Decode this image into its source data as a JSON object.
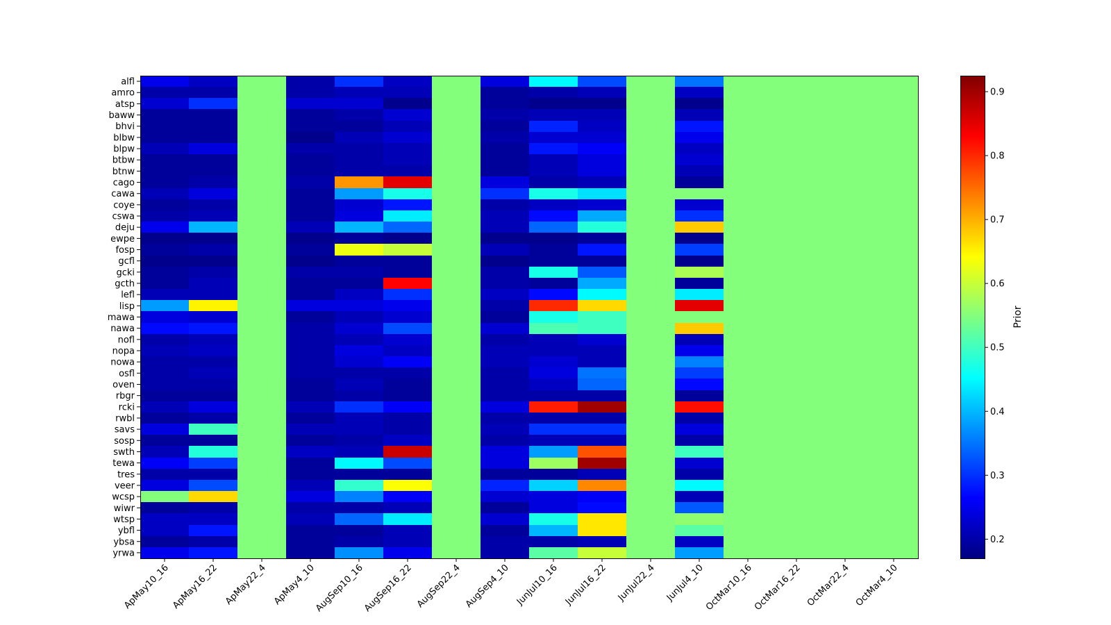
{
  "chart_data": {
    "type": "heatmap",
    "colormap": "jet",
    "colorbar": {
      "label": "Prior",
      "vmin": 0.17,
      "vmax": 0.925,
      "ticks": [
        0.2,
        0.3,
        0.4,
        0.5,
        0.6,
        0.7,
        0.8,
        0.9
      ],
      "tick_labels": [
        "0.2",
        "0.3",
        "0.4",
        "0.5",
        "0.6",
        "0.7",
        "0.8",
        "0.9"
      ]
    },
    "x_labels": [
      "ApMay10_16",
      "ApMay16_22",
      "ApMay22_4",
      "ApMay4_10",
      "AugSep10_16",
      "AugSep16_22",
      "AugSep22_4",
      "AugSep4_10",
      "JunJul10_16",
      "JunJul16_22",
      "JunJul22_4",
      "JunJul4_10",
      "OctMar10_16",
      "OctMar16_22",
      "OctMar22_4",
      "OctMar4_10"
    ],
    "y_labels": [
      "alfl",
      "amro",
      "atsp",
      "baww",
      "bhvi",
      "blbw",
      "blpw",
      "btbw",
      "btnw",
      "cago",
      "cawa",
      "coye",
      "cswa",
      "deju",
      "ewpe",
      "fosp",
      "gcfl",
      "gcki",
      "gcth",
      "lefl",
      "lisp",
      "mawa",
      "nawa",
      "nofl",
      "nopa",
      "nowa",
      "osfl",
      "oven",
      "rbgr",
      "rcki",
      "rwbl",
      "savs",
      "sosp",
      "swth",
      "tewa",
      "tres",
      "veer",
      "wcsp",
      "wiwr",
      "wtsp",
      "ybfl",
      "ybsa",
      "yrwa"
    ],
    "values": [
      [
        0.25,
        0.22,
        0.55,
        0.2,
        0.3,
        0.22,
        0.55,
        0.24,
        0.45,
        0.32,
        0.55,
        0.35,
        0.55,
        0.55,
        0.55,
        0.55
      ],
      [
        0.2,
        0.2,
        0.55,
        0.2,
        0.21,
        0.21,
        0.55,
        0.19,
        0.2,
        0.21,
        0.55,
        0.22,
        0.55,
        0.55,
        0.55,
        0.55
      ],
      [
        0.23,
        0.3,
        0.55,
        0.23,
        0.23,
        0.18,
        0.55,
        0.19,
        0.18,
        0.18,
        0.55,
        0.18,
        0.55,
        0.55,
        0.55,
        0.55
      ],
      [
        0.19,
        0.19,
        0.55,
        0.19,
        0.2,
        0.23,
        0.55,
        0.2,
        0.21,
        0.21,
        0.55,
        0.21,
        0.55,
        0.55,
        0.55,
        0.55
      ],
      [
        0.19,
        0.19,
        0.55,
        0.19,
        0.19,
        0.21,
        0.55,
        0.19,
        0.29,
        0.22,
        0.55,
        0.28,
        0.55,
        0.55,
        0.55,
        0.55
      ],
      [
        0.19,
        0.19,
        0.55,
        0.18,
        0.21,
        0.23,
        0.55,
        0.2,
        0.23,
        0.23,
        0.55,
        0.25,
        0.55,
        0.55,
        0.55,
        0.55
      ],
      [
        0.21,
        0.24,
        0.55,
        0.2,
        0.2,
        0.21,
        0.55,
        0.19,
        0.28,
        0.26,
        0.55,
        0.22,
        0.55,
        0.55,
        0.55,
        0.55
      ],
      [
        0.19,
        0.19,
        0.55,
        0.19,
        0.2,
        0.21,
        0.55,
        0.19,
        0.21,
        0.24,
        0.55,
        0.23,
        0.55,
        0.55,
        0.55,
        0.55
      ],
      [
        0.19,
        0.19,
        0.55,
        0.19,
        0.2,
        0.2,
        0.55,
        0.19,
        0.21,
        0.24,
        0.55,
        0.21,
        0.55,
        0.55,
        0.55,
        0.55
      ],
      [
        0.19,
        0.2,
        0.55,
        0.2,
        0.72,
        0.85,
        0.55,
        0.24,
        0.2,
        0.21,
        0.55,
        0.19,
        0.55,
        0.55,
        0.55,
        0.55
      ],
      [
        0.21,
        0.24,
        0.55,
        0.19,
        0.38,
        0.47,
        0.55,
        0.3,
        0.47,
        0.43,
        0.55,
        0.55,
        0.55,
        0.55,
        0.55,
        0.55
      ],
      [
        0.19,
        0.2,
        0.55,
        0.19,
        0.23,
        0.28,
        0.55,
        0.2,
        0.22,
        0.23,
        0.55,
        0.23,
        0.55,
        0.55,
        0.55,
        0.55
      ],
      [
        0.2,
        0.21,
        0.55,
        0.19,
        0.24,
        0.44,
        0.55,
        0.21,
        0.27,
        0.39,
        0.55,
        0.3,
        0.55,
        0.55,
        0.55,
        0.55
      ],
      [
        0.25,
        0.4,
        0.55,
        0.21,
        0.4,
        0.34,
        0.55,
        0.21,
        0.34,
        0.48,
        0.55,
        0.68,
        0.55,
        0.55,
        0.55,
        0.55
      ],
      [
        0.18,
        0.18,
        0.55,
        0.18,
        0.19,
        0.18,
        0.55,
        0.18,
        0.18,
        0.19,
        0.55,
        0.18,
        0.55,
        0.55,
        0.55,
        0.55
      ],
      [
        0.19,
        0.2,
        0.55,
        0.19,
        0.63,
        0.6,
        0.55,
        0.21,
        0.19,
        0.28,
        0.55,
        0.31,
        0.55,
        0.55,
        0.55,
        0.55
      ],
      [
        0.18,
        0.18,
        0.55,
        0.18,
        0.19,
        0.19,
        0.55,
        0.18,
        0.19,
        0.19,
        0.55,
        0.18,
        0.55,
        0.55,
        0.55,
        0.55
      ],
      [
        0.19,
        0.2,
        0.55,
        0.2,
        0.2,
        0.19,
        0.55,
        0.2,
        0.47,
        0.33,
        0.55,
        0.58,
        0.55,
        0.55,
        0.55,
        0.55
      ],
      [
        0.19,
        0.21,
        0.55,
        0.19,
        0.19,
        0.83,
        0.55,
        0.2,
        0.19,
        0.39,
        0.55,
        0.19,
        0.55,
        0.55,
        0.55,
        0.55
      ],
      [
        0.21,
        0.21,
        0.55,
        0.19,
        0.22,
        0.3,
        0.55,
        0.22,
        0.27,
        0.45,
        0.55,
        0.44,
        0.55,
        0.55,
        0.55,
        0.55
      ],
      [
        0.38,
        0.65,
        0.55,
        0.24,
        0.24,
        0.25,
        0.55,
        0.2,
        0.8,
        0.67,
        0.55,
        0.85,
        0.55,
        0.55,
        0.55,
        0.55
      ],
      [
        0.24,
        0.23,
        0.55,
        0.19,
        0.21,
        0.23,
        0.55,
        0.19,
        0.47,
        0.5,
        0.55,
        0.55,
        0.55,
        0.55,
        0.55,
        0.55
      ],
      [
        0.27,
        0.28,
        0.55,
        0.2,
        0.23,
        0.32,
        0.55,
        0.23,
        0.51,
        0.5,
        0.55,
        0.68,
        0.55,
        0.55,
        0.55,
        0.55
      ],
      [
        0.2,
        0.21,
        0.55,
        0.2,
        0.21,
        0.23,
        0.55,
        0.2,
        0.21,
        0.23,
        0.55,
        0.21,
        0.55,
        0.55,
        0.55,
        0.55
      ],
      [
        0.21,
        0.22,
        0.55,
        0.2,
        0.24,
        0.22,
        0.55,
        0.21,
        0.21,
        0.21,
        0.55,
        0.25,
        0.55,
        0.55,
        0.55,
        0.55
      ],
      [
        0.2,
        0.2,
        0.55,
        0.2,
        0.23,
        0.26,
        0.55,
        0.21,
        0.23,
        0.21,
        0.55,
        0.36,
        0.55,
        0.55,
        0.55,
        0.55
      ],
      [
        0.2,
        0.21,
        0.55,
        0.2,
        0.2,
        0.2,
        0.55,
        0.2,
        0.24,
        0.35,
        0.55,
        0.31,
        0.55,
        0.55,
        0.55,
        0.55
      ],
      [
        0.2,
        0.2,
        0.55,
        0.19,
        0.21,
        0.19,
        0.55,
        0.2,
        0.22,
        0.34,
        0.55,
        0.27,
        0.55,
        0.55,
        0.55,
        0.55
      ],
      [
        0.19,
        0.19,
        0.55,
        0.19,
        0.2,
        0.19,
        0.55,
        0.2,
        0.2,
        0.2,
        0.55,
        0.19,
        0.55,
        0.55,
        0.55,
        0.55
      ],
      [
        0.21,
        0.24,
        0.55,
        0.21,
        0.3,
        0.26,
        0.55,
        0.24,
        0.81,
        0.9,
        0.55,
        0.82,
        0.55,
        0.55,
        0.55,
        0.55
      ],
      [
        0.19,
        0.2,
        0.55,
        0.19,
        0.21,
        0.2,
        0.55,
        0.2,
        0.2,
        0.2,
        0.55,
        0.2,
        0.55,
        0.55,
        0.55,
        0.55
      ],
      [
        0.24,
        0.5,
        0.55,
        0.21,
        0.21,
        0.2,
        0.55,
        0.21,
        0.3,
        0.3,
        0.55,
        0.24,
        0.55,
        0.55,
        0.55,
        0.55
      ],
      [
        0.19,
        0.19,
        0.55,
        0.19,
        0.2,
        0.22,
        0.55,
        0.2,
        0.21,
        0.21,
        0.55,
        0.2,
        0.55,
        0.55,
        0.55,
        0.55
      ],
      [
        0.21,
        0.48,
        0.55,
        0.22,
        0.21,
        0.87,
        0.55,
        0.24,
        0.38,
        0.77,
        0.55,
        0.5,
        0.55,
        0.55,
        0.55,
        0.55
      ],
      [
        0.26,
        0.31,
        0.55,
        0.19,
        0.45,
        0.32,
        0.55,
        0.24,
        0.57,
        0.9,
        0.55,
        0.23,
        0.55,
        0.55,
        0.55,
        0.55
      ],
      [
        0.2,
        0.2,
        0.55,
        0.19,
        0.19,
        0.19,
        0.55,
        0.19,
        0.19,
        0.21,
        0.55,
        0.2,
        0.55,
        0.55,
        0.55,
        0.55
      ],
      [
        0.24,
        0.32,
        0.55,
        0.21,
        0.49,
        0.64,
        0.55,
        0.29,
        0.42,
        0.73,
        0.55,
        0.45,
        0.55,
        0.55,
        0.55,
        0.55
      ],
      [
        0.55,
        0.67,
        0.55,
        0.24,
        0.36,
        0.26,
        0.55,
        0.23,
        0.24,
        0.26,
        0.55,
        0.21,
        0.55,
        0.55,
        0.55,
        0.55
      ],
      [
        0.19,
        0.2,
        0.55,
        0.2,
        0.2,
        0.21,
        0.55,
        0.19,
        0.24,
        0.27,
        0.55,
        0.33,
        0.55,
        0.55,
        0.55,
        0.55
      ],
      [
        0.22,
        0.22,
        0.55,
        0.21,
        0.34,
        0.44,
        0.55,
        0.23,
        0.47,
        0.66,
        0.55,
        0.56,
        0.55,
        0.55,
        0.55,
        0.55
      ],
      [
        0.22,
        0.28,
        0.55,
        0.19,
        0.19,
        0.21,
        0.55,
        0.19,
        0.4,
        0.66,
        0.55,
        0.52,
        0.55,
        0.55,
        0.55,
        0.55
      ],
      [
        0.19,
        0.2,
        0.55,
        0.19,
        0.2,
        0.21,
        0.55,
        0.2,
        0.2,
        0.21,
        0.55,
        0.22,
        0.55,
        0.55,
        0.55,
        0.55
      ],
      [
        0.25,
        0.28,
        0.55,
        0.19,
        0.37,
        0.25,
        0.55,
        0.2,
        0.52,
        0.6,
        0.55,
        0.38,
        0.55,
        0.55,
        0.55,
        0.55
      ]
    ]
  }
}
